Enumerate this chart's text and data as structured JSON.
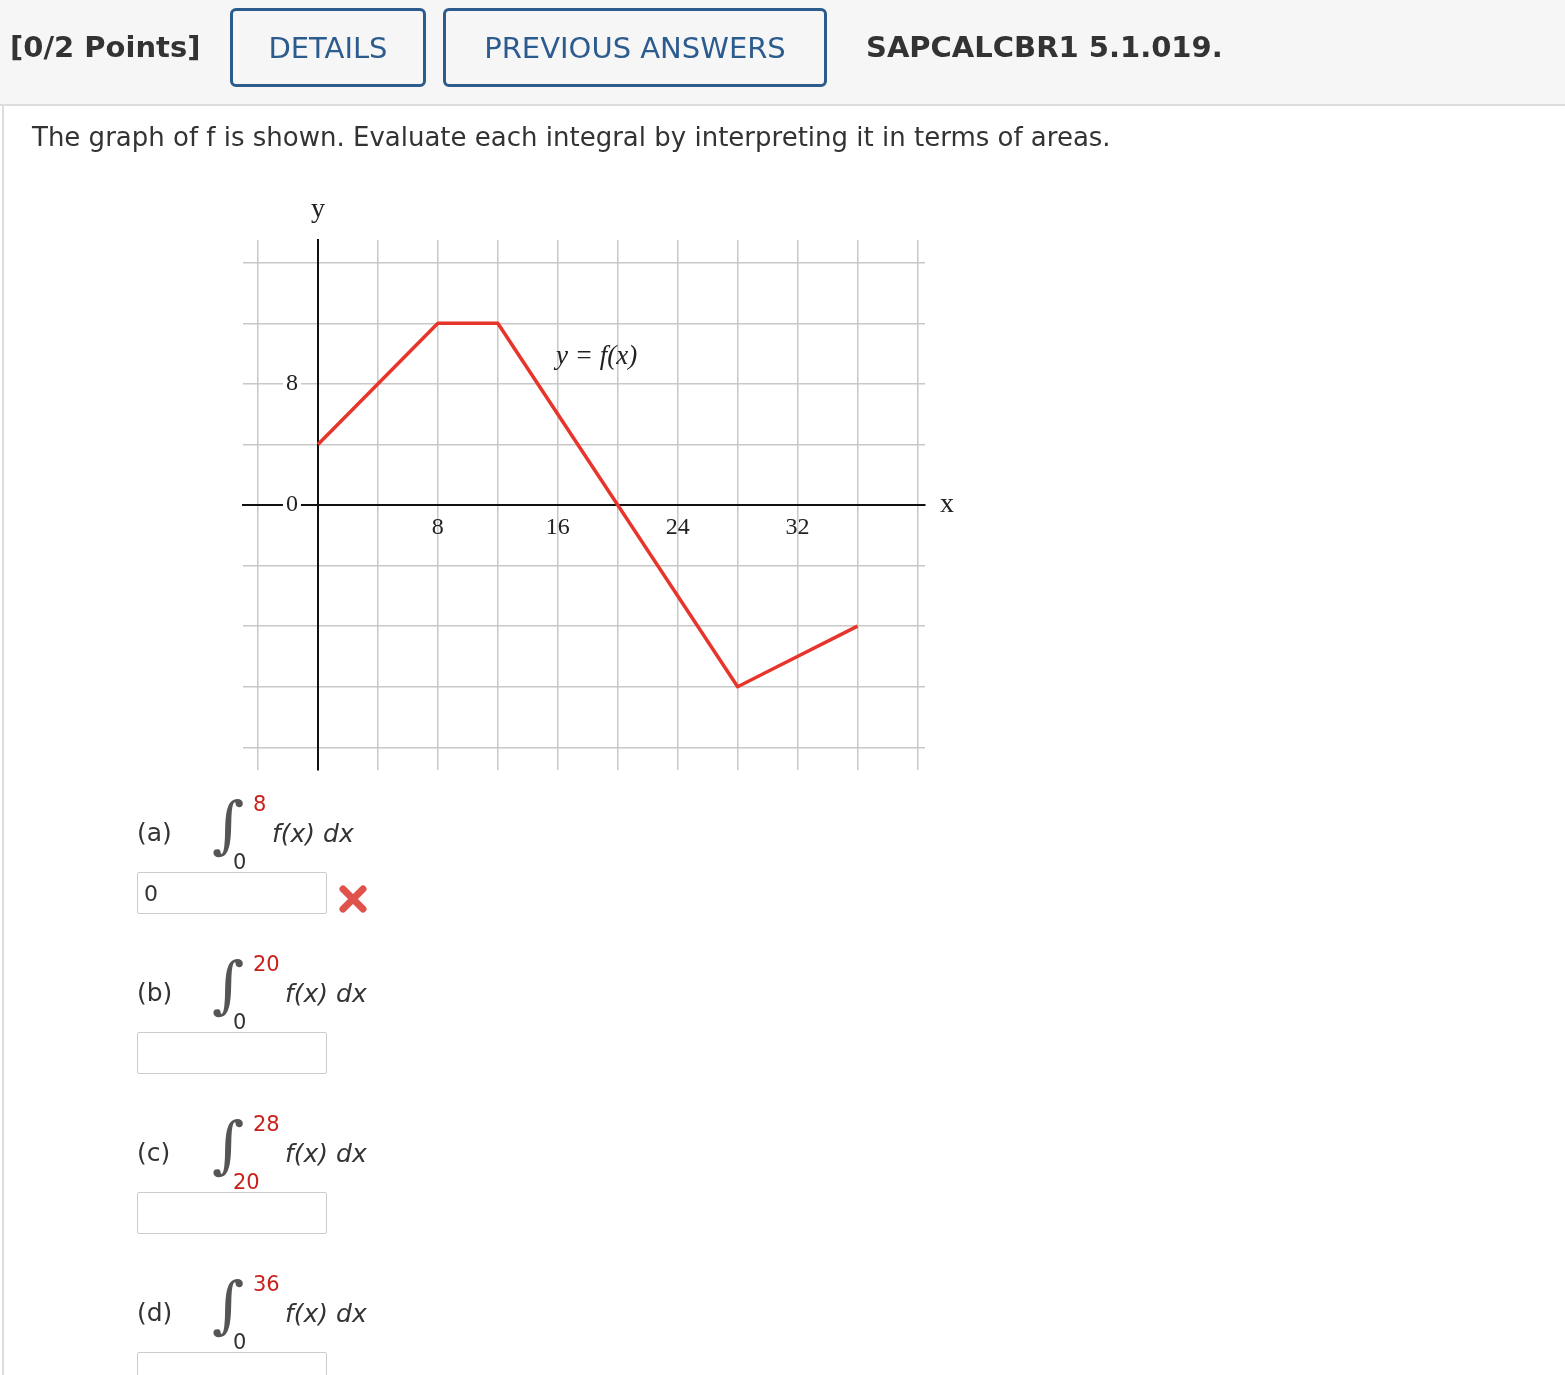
{
  "chart_data": {
    "type": "line",
    "title": "The graph of f is shown. Evaluate each integral by interpreting it in terms of areas.",
    "xlabel": "x",
    "ylabel": "y",
    "x": [
      0,
      8,
      12,
      20,
      28,
      36
    ],
    "values": [
      4,
      12,
      12,
      0,
      -12,
      -8
    ],
    "color": "#e8352b",
    "marker": "none",
    "line_style": "solid",
    "grid": true,
    "legend": false,
    "xlim": [
      -5,
      40.5
    ],
    "ylim": [
      -17.5,
      17.5
    ],
    "xticks": [
      {
        "value": -4,
        "label": null
      },
      {
        "value": 0,
        "label": null
      },
      {
        "value": 4,
        "label": null
      },
      8,
      {
        "value": 12,
        "label": null
      },
      16,
      {
        "value": 20,
        "label": null
      },
      24,
      {
        "value": 28,
        "label": null
      },
      32,
      {
        "value": 36,
        "label": null
      },
      {
        "value": 40,
        "label": null
      }
    ],
    "yticks": [
      {
        "value": -16,
        "label": null
      },
      {
        "value": -12,
        "label": null
      },
      {
        "value": -8,
        "label": null
      },
      {
        "value": -4,
        "label": null
      },
      0,
      {
        "value": 4,
        "label": null
      },
      8,
      {
        "value": 12,
        "label": null
      },
      {
        "value": 16,
        "label": null
      }
    ],
    "annotations": [
      "[0/2 Points]",
      "DETAILS",
      "PREVIOUS ANSWERS",
      "SAPCALCBR1 5.1.019.",
      "y = f(x)",
      "(a)",
      "∫",
      "8",
      "0",
      "f(x) dx",
      "0",
      "(b)",
      "∫",
      "20",
      "0",
      "f(x) dx",
      null,
      "(c)",
      "∫",
      "28",
      "20",
      "f(x) dx",
      null,
      "(d)",
      "∫",
      "36",
      "0",
      "f(x) dx",
      null
    ]
  }
}
